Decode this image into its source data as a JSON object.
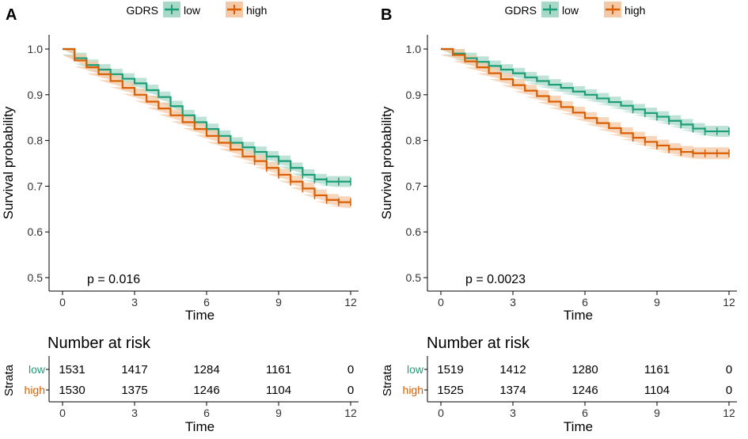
{
  "colors": {
    "low": "#1b9e77",
    "high": "#d95f02",
    "lowBand": "#a8d9c8",
    "highBand": "#f5c8a6",
    "axis": "#000000",
    "text": "#000000"
  },
  "chart_data": [
    {
      "type": "line",
      "panel_label": "A",
      "legend_title": "GDRS",
      "legend_position": "top",
      "xlabel": "Time",
      "ylabel": "Survival probability",
      "xlim": [
        0,
        12
      ],
      "ylim": [
        0.5,
        1.0
      ],
      "x_ticks": [
        0,
        3,
        6,
        9,
        12
      ],
      "y_ticks": [
        0.5,
        0.6,
        0.7,
        0.8,
        0.9,
        1.0
      ],
      "x_tick_labels": [
        "0",
        "3",
        "6",
        "9",
        "12"
      ],
      "y_tick_labels": [
        "0.5",
        "0.6",
        "0.7",
        "0.8",
        "0.9",
        "1.0"
      ],
      "pvalue": "p = 0.016",
      "series": [
        {
          "name": "low",
          "x": [
            0,
            0.5,
            1,
            1.5,
            2,
            2.5,
            3,
            3.5,
            4,
            4.5,
            5,
            5.5,
            6,
            6.5,
            7,
            7.5,
            8,
            8.5,
            9,
            9.5,
            10,
            10.5,
            11,
            11.5,
            12
          ],
          "values": [
            1.0,
            0.98,
            0.965,
            0.955,
            0.945,
            0.935,
            0.925,
            0.91,
            0.895,
            0.875,
            0.855,
            0.84,
            0.825,
            0.81,
            0.795,
            0.785,
            0.775,
            0.765,
            0.755,
            0.74,
            0.725,
            0.715,
            0.71,
            0.71,
            0.71
          ],
          "band": 0.012
        },
        {
          "name": "high",
          "x": [
            0,
            0.5,
            1,
            1.5,
            2,
            2.5,
            3,
            3.5,
            4,
            4.5,
            5,
            5.5,
            6,
            6.5,
            7,
            7.5,
            8,
            8.5,
            9,
            9.5,
            10,
            10.5,
            11,
            11.5,
            12
          ],
          "values": [
            1.0,
            0.975,
            0.96,
            0.945,
            0.93,
            0.915,
            0.9,
            0.885,
            0.87,
            0.855,
            0.84,
            0.825,
            0.81,
            0.795,
            0.78,
            0.765,
            0.755,
            0.74,
            0.725,
            0.71,
            0.695,
            0.68,
            0.67,
            0.665,
            0.665
          ],
          "band": 0.013
        }
      ],
      "risk_table": {
        "title": "Number at risk",
        "strata_label": "Strata",
        "rows": [
          {
            "name": "low",
            "values": [
              "1531",
              "1417",
              "1284",
              "1161",
              "0"
            ]
          },
          {
            "name": "high",
            "values": [
              "1530",
              "1375",
              "1246",
              "1104",
              "0"
            ]
          }
        ]
      }
    },
    {
      "type": "line",
      "panel_label": "B",
      "legend_title": "GDRS",
      "legend_position": "top",
      "xlabel": "Time",
      "ylabel": "Survival probability",
      "xlim": [
        0,
        12
      ],
      "ylim": [
        0.5,
        1.0
      ],
      "x_ticks": [
        0,
        3,
        6,
        9,
        12
      ],
      "y_ticks": [
        0.5,
        0.6,
        0.7,
        0.8,
        0.9,
        1.0
      ],
      "x_tick_labels": [
        "0",
        "3",
        "6",
        "9",
        "12"
      ],
      "y_tick_labels": [
        "0.5",
        "0.6",
        "0.7",
        "0.8",
        "0.9",
        "1.0"
      ],
      "pvalue": "p = 0.0023",
      "series": [
        {
          "name": "low",
          "x": [
            0,
            0.5,
            1,
            1.5,
            2,
            2.5,
            3,
            3.5,
            4,
            4.5,
            5,
            5.5,
            6,
            6.5,
            7,
            7.5,
            8,
            8.5,
            9,
            9.5,
            10,
            10.5,
            11,
            11.5,
            12
          ],
          "values": [
            1.0,
            0.99,
            0.98,
            0.972,
            0.963,
            0.955,
            0.947,
            0.938,
            0.93,
            0.922,
            0.915,
            0.907,
            0.9,
            0.892,
            0.884,
            0.876,
            0.868,
            0.86,
            0.852,
            0.843,
            0.835,
            0.826,
            0.82,
            0.82,
            0.82
          ],
          "band": 0.012
        },
        {
          "name": "high",
          "x": [
            0,
            0.5,
            1,
            1.5,
            2,
            2.5,
            3,
            3.5,
            4,
            4.5,
            5,
            5.5,
            6,
            6.5,
            7,
            7.5,
            8,
            8.5,
            9,
            9.5,
            10,
            10.5,
            11,
            11.5,
            12
          ],
          "values": [
            1.0,
            0.987,
            0.973,
            0.96,
            0.947,
            0.934,
            0.921,
            0.909,
            0.897,
            0.885,
            0.873,
            0.861,
            0.849,
            0.838,
            0.827,
            0.816,
            0.806,
            0.797,
            0.789,
            0.781,
            0.775,
            0.772,
            0.772,
            0.772,
            0.772
          ],
          "band": 0.013
        }
      ],
      "risk_table": {
        "title": "Number at risk",
        "strata_label": "Strata",
        "rows": [
          {
            "name": "low",
            "values": [
              "1519",
              "1412",
              "1280",
              "1161",
              "0"
            ]
          },
          {
            "name": "high",
            "values": [
              "1525",
              "1374",
              "1246",
              "1104",
              "0"
            ]
          }
        ]
      }
    }
  ]
}
